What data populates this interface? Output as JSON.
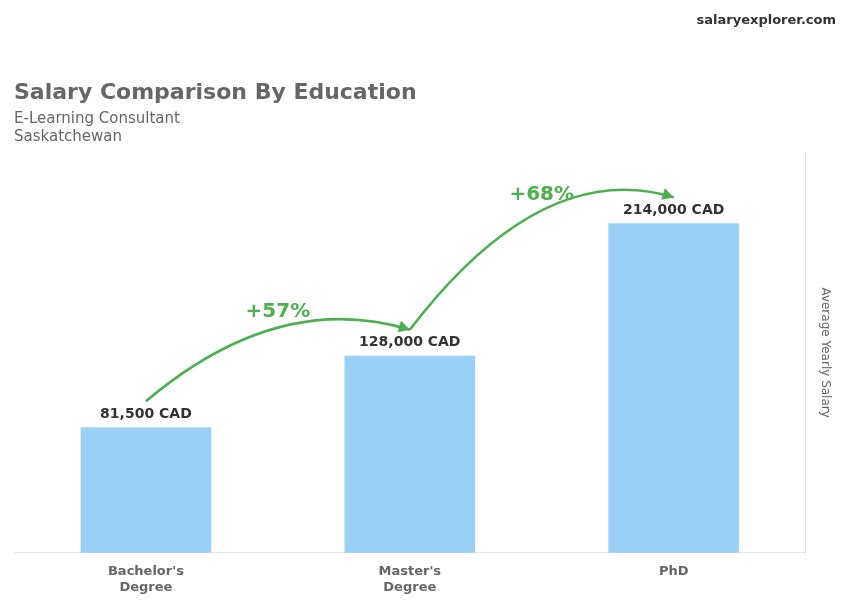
{
  "chart_data": {
    "type": "bar",
    "title": "Salary Comparison By Education",
    "subtitle": [
      "E-Learning Consultant",
      "Saskatchewan"
    ],
    "ylabel": "Average Yearly Salary",
    "categories": [
      "Bachelor's\nDegree",
      "Master's\nDegree",
      "PhD"
    ],
    "values": [
      81500,
      128000,
      214000
    ],
    "value_labels": [
      "81,500 CAD",
      "128,000 CAD",
      "214,000 CAD"
    ],
    "data_labels": true,
    "ylim": [
      0,
      260000
    ],
    "grid": false,
    "tick_labels": "x",
    "annotations": [
      "+57%",
      "+68%",
      "salaryexplorer.com"
    ]
  }
}
